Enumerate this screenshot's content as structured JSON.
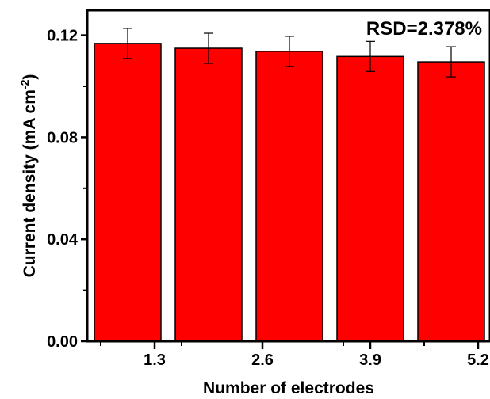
{
  "chart_data": {
    "type": "bar",
    "title": "",
    "xlabel": "Number of electrodes",
    "ylabel_main": "Current density (mA cm",
    "ylabel_sup": "-2",
    "ylabel_close": ")",
    "annotation": "RSD=2.378%",
    "ylim": [
      0,
      0.13
    ],
    "y_ticks": [
      0.0,
      0.04,
      0.08,
      0.12
    ],
    "y_tick_labels": [
      "0.00",
      "0.04",
      "0.08",
      "0.12"
    ],
    "x_tick_labels": [
      "1.3",
      "2.6",
      "3.9",
      "5.2"
    ],
    "series": [
      {
        "values": [
          0.1168,
          0.1149,
          0.1137,
          0.1117,
          0.1096
        ],
        "errors": [
          0.0059,
          0.0059,
          0.0059,
          0.0059,
          0.0059
        ]
      }
    ],
    "bar_color": "#ff0000",
    "grid": false,
    "legend": "none"
  }
}
